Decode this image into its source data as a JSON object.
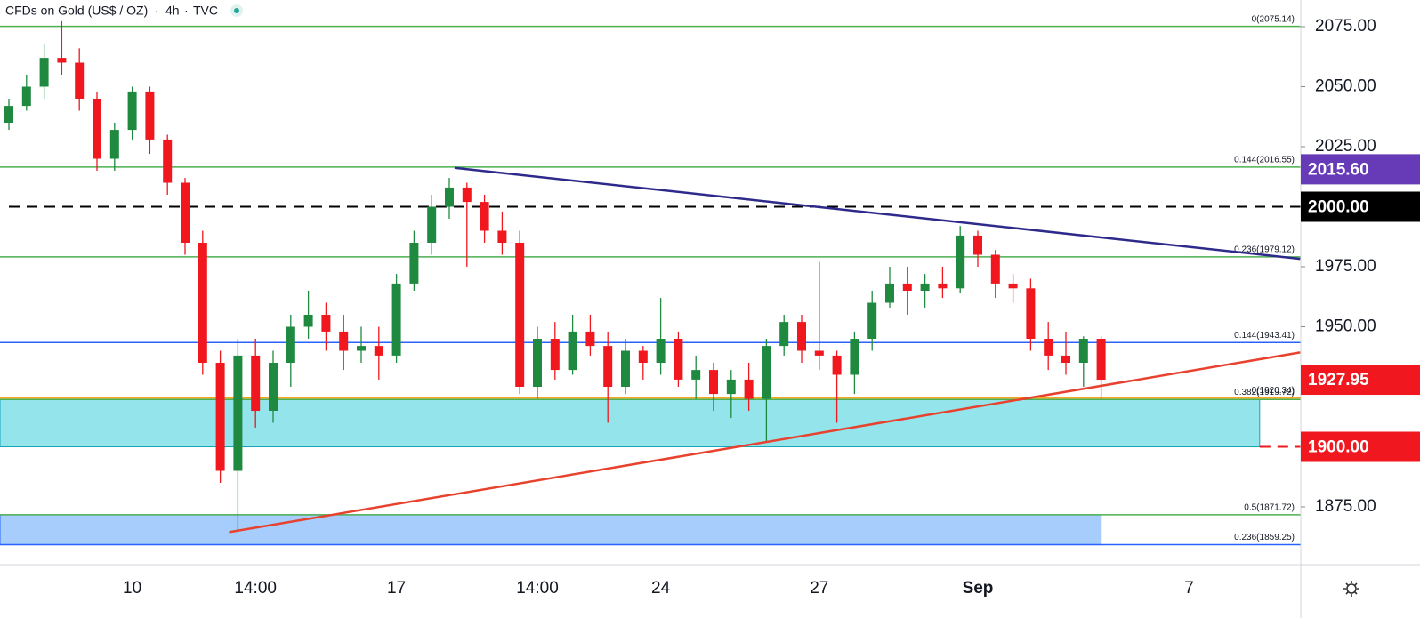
{
  "chart_data": {
    "type": "candlestick",
    "title": "CFDs on Gold (US$ / OZ)",
    "interval": "4h",
    "source": "TVC",
    "up_color": "#1f8a3f",
    "down_color": "#f0171e",
    "ylim": [
      1850.93,
      2086.11
    ],
    "yticks": [
      {
        "value": 1875,
        "label": "1875.00"
      },
      {
        "value": 1950,
        "label": "1950.00"
      },
      {
        "value": 1975,
        "label": "1975.00"
      },
      {
        "value": 2025,
        "label": "2025.00"
      },
      {
        "value": 2050,
        "label": "2050.00"
      },
      {
        "value": 2075,
        "label": "2075.00"
      }
    ],
    "price_tags": [
      {
        "value": 2015.6,
        "label": "2015.60",
        "color": "#673ab7"
      },
      {
        "value": 2000,
        "label": "2000.00",
        "color": "#000000"
      },
      {
        "value": 1927.95,
        "label": "1927.95",
        "color": "#f0171e"
      },
      {
        "value": 1900,
        "label": "1900.00",
        "color": "#f0171e"
      }
    ],
    "categories": [
      null,
      null,
      null,
      null,
      null,
      null,
      null,
      "10",
      null,
      null,
      null,
      null,
      null,
      null,
      "14:00",
      null,
      null,
      null,
      null,
      null,
      null,
      null,
      "17",
      null,
      null,
      null,
      null,
      null,
      null,
      null,
      "14:00",
      null,
      null,
      null,
      null,
      null,
      null,
      "24",
      null,
      null,
      null,
      null,
      null,
      null,
      null,
      null,
      "27",
      null,
      null,
      null,
      null,
      null,
      null,
      null,
      null,
      "Sep",
      null,
      null,
      null,
      null,
      null,
      null,
      null,
      null,
      null,
      null,
      null,
      "7",
      null,
      null,
      null,
      null,
      null
    ],
    "candles": [
      [
        2035,
        2045,
        2032,
        2042
      ],
      [
        2042,
        2055,
        2040,
        2050
      ],
      [
        2050,
        2068,
        2045,
        2062
      ],
      [
        2062,
        2078,
        2055,
        2060
      ],
      [
        2060,
        2066,
        2040,
        2045
      ],
      [
        2045,
        2048,
        2015,
        2020
      ],
      [
        2020,
        2035,
        2015,
        2032
      ],
      [
        2032,
        2050,
        2028,
        2048
      ],
      [
        2048,
        2050,
        2022,
        2028
      ],
      [
        2028,
        2030,
        2005,
        2010
      ],
      [
        2010,
        2012,
        1980,
        1985
      ],
      [
        1985,
        1990,
        1930,
        1935
      ],
      [
        1935,
        1940,
        1885,
        1890
      ],
      [
        1890,
        1945,
        1865,
        1938
      ],
      [
        1938,
        1945,
        1908,
        1915
      ],
      [
        1915,
        1940,
        1910,
        1935
      ],
      [
        1935,
        1955,
        1925,
        1950
      ],
      [
        1950,
        1965,
        1945,
        1955
      ],
      [
        1955,
        1960,
        1940,
        1948
      ],
      [
        1948,
        1955,
        1932,
        1940
      ],
      [
        1940,
        1950,
        1935,
        1942
      ],
      [
        1942,
        1950,
        1928,
        1938
      ],
      [
        1938,
        1972,
        1935,
        1968
      ],
      [
        1968,
        1990,
        1965,
        1985
      ],
      [
        1985,
        2005,
        1980,
        2000
      ],
      [
        2000,
        2012,
        1995,
        2008
      ],
      [
        2008,
        2010,
        1975,
        2002
      ],
      [
        2002,
        2005,
        1985,
        1990
      ],
      [
        1990,
        1998,
        1980,
        1985
      ],
      [
        1985,
        1990,
        1922,
        1925
      ],
      [
        1925,
        1950,
        1920,
        1945
      ],
      [
        1945,
        1952,
        1928,
        1932
      ],
      [
        1932,
        1955,
        1930,
        1948
      ],
      [
        1948,
        1955,
        1938,
        1942
      ],
      [
        1942,
        1948,
        1910,
        1925
      ],
      [
        1925,
        1945,
        1922,
        1940
      ],
      [
        1940,
        1942,
        1928,
        1935
      ],
      [
        1935,
        1962,
        1930,
        1945
      ],
      [
        1945,
        1948,
        1925,
        1928
      ],
      [
        1928,
        1938,
        1920,
        1932
      ],
      [
        1932,
        1935,
        1915,
        1922
      ],
      [
        1922,
        1932,
        1912,
        1928
      ],
      [
        1928,
        1935,
        1915,
        1920
      ],
      [
        1920,
        1945,
        1902,
        1942
      ],
      [
        1942,
        1955,
        1938,
        1952
      ],
      [
        1952,
        1955,
        1935,
        1940
      ],
      [
        1940,
        1977,
        1932,
        1938
      ],
      [
        1938,
        1940,
        1910,
        1930
      ],
      [
        1930,
        1948,
        1922,
        1945
      ],
      [
        1945,
        1965,
        1940,
        1960
      ],
      [
        1960,
        1975,
        1958,
        1968
      ],
      [
        1968,
        1975,
        1955,
        1965
      ],
      [
        1965,
        1972,
        1958,
        1968
      ],
      [
        1968,
        1975,
        1962,
        1966
      ],
      [
        1966,
        1992,
        1964,
        1988
      ],
      [
        1988,
        1990,
        1975,
        1980
      ],
      [
        1980,
        1982,
        1962,
        1968
      ],
      [
        1968,
        1972,
        1960,
        1966
      ],
      [
        1966,
        1970,
        1940,
        1945
      ],
      [
        1945,
        1952,
        1932,
        1938
      ],
      [
        1938,
        1948,
        1930,
        1935
      ],
      [
        1935,
        1946,
        1925,
        1945
      ],
      [
        1945,
        1946,
        1920,
        1927.95
      ],
      null,
      null,
      null,
      null,
      null,
      null,
      null,
      null,
      null,
      null
    ],
    "levels": [
      {
        "label": "0(2075.14)",
        "value": 2075.14,
        "color": "#4caf50"
      },
      {
        "label": "0.144(2016.55)",
        "value": 2016.55,
        "color": "#4caf50"
      },
      {
        "label": "0.236(1979.12)",
        "value": 1979.12,
        "color": "#4caf50"
      },
      {
        "label": "0.144(1943.41)",
        "value": 1943.41,
        "color": "#2962ff"
      },
      {
        "label": "0(1920.34)",
        "value": 1920.34,
        "color": "#f5a623"
      },
      {
        "label": "0.382(1919.72)",
        "value": 1919.72,
        "color": "#4caf50"
      },
      {
        "label": "0.5(1871.72)",
        "value": 1871.72,
        "color": "#4caf50"
      },
      {
        "label": "0.236(1859.25)",
        "value": 1859.25,
        "color": "#2962ff"
      }
    ],
    "zones": [
      {
        "from": 1919.72,
        "to": 1900,
        "end": 71,
        "color": "#93e4eb",
        "edge": "#1aa3b8"
      },
      {
        "from": 1871.72,
        "to": 1859.25,
        "end": 62,
        "color": "#a6cdfb",
        "edge": "#2962ff"
      }
    ],
    "dashed_lines": [
      {
        "value": 2000,
        "color": "#000000",
        "start": 0
      },
      {
        "value": 1900,
        "color": "#f0171e",
        "start": 71
      }
    ],
    "trendlines": [
      {
        "from": [
          25.3,
          2016.2
        ],
        "to": [
          73.3,
          1978.3
        ],
        "color": "#2e2a8c"
      },
      {
        "from": [
          12.5,
          1864.5
        ],
        "to": [
          73.3,
          1939.3
        ],
        "color": "#e8412d"
      }
    ]
  }
}
